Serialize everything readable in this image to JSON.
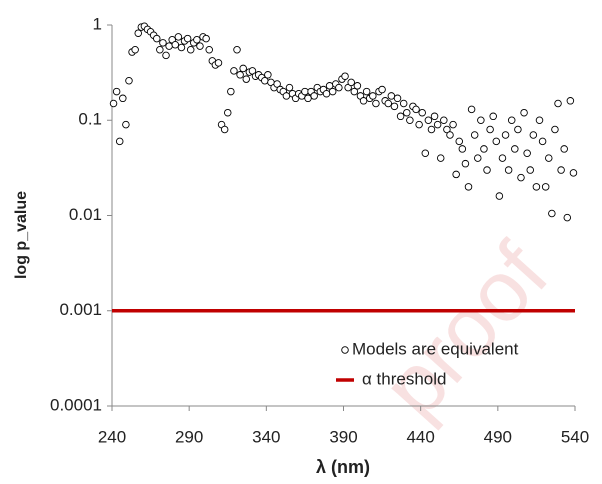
{
  "chart_data": {
    "type": "scatter",
    "xlabel": "λ (nm)",
    "ylabel": "log p_value",
    "watermark": "proof",
    "xlim": [
      240,
      540
    ],
    "xticks": [
      240,
      290,
      340,
      390,
      440,
      490,
      540
    ],
    "ylim": [
      0.0001,
      1
    ],
    "yticks": [
      1,
      0.1,
      0.01,
      0.001,
      0.0001
    ],
    "log_y": true,
    "legend": "lower right",
    "series": [
      {
        "name": "Models are equivalent",
        "type": "scatter",
        "color": "#000000",
        "x": [
          241,
          243,
          245,
          247,
          249,
          251,
          253,
          255,
          257,
          259,
          261,
          263,
          265,
          267,
          269,
          271,
          273,
          275,
          277,
          279,
          281,
          283,
          285,
          287,
          289,
          291,
          293,
          295,
          297,
          299,
          301,
          303,
          305,
          307,
          309,
          311,
          313,
          315,
          317,
          319,
          321,
          323,
          325,
          327,
          329,
          331,
          333,
          335,
          337,
          339,
          341,
          343,
          345,
          347,
          349,
          351,
          353,
          355,
          357,
          359,
          361,
          363,
          365,
          367,
          369,
          371,
          373,
          375,
          377,
          379,
          381,
          383,
          385,
          387,
          389,
          391,
          393,
          395,
          397,
          399,
          401,
          403,
          405,
          407,
          409,
          411,
          413,
          415,
          417,
          419,
          421,
          423,
          425,
          427,
          429,
          431,
          433,
          435,
          437,
          439,
          441,
          443,
          445,
          447,
          449,
          451,
          453,
          455,
          457,
          459,
          461,
          463,
          465,
          467,
          469,
          471,
          473,
          475,
          477,
          479,
          481,
          483,
          485,
          487,
          489,
          491,
          493,
          495,
          497,
          499,
          501,
          503,
          505,
          507,
          509,
          511,
          513,
          515,
          517,
          519,
          521,
          523,
          525,
          527,
          529,
          531,
          533,
          535,
          537,
          539
        ],
        "values": [
          0.15,
          0.2,
          0.06,
          0.17,
          0.09,
          0.26,
          0.52,
          0.55,
          0.82,
          0.95,
          0.97,
          0.9,
          0.85,
          0.78,
          0.72,
          0.55,
          0.65,
          0.48,
          0.6,
          0.7,
          0.62,
          0.75,
          0.58,
          0.68,
          0.72,
          0.55,
          0.65,
          0.7,
          0.6,
          0.75,
          0.72,
          0.55,
          0.42,
          0.38,
          0.4,
          0.09,
          0.08,
          0.12,
          0.2,
          0.33,
          0.55,
          0.3,
          0.35,
          0.27,
          0.32,
          0.33,
          0.29,
          0.3,
          0.28,
          0.26,
          0.3,
          0.25,
          0.22,
          0.24,
          0.21,
          0.2,
          0.18,
          0.22,
          0.19,
          0.17,
          0.19,
          0.18,
          0.2,
          0.17,
          0.2,
          0.18,
          0.22,
          0.2,
          0.21,
          0.19,
          0.23,
          0.2,
          0.24,
          0.22,
          0.27,
          0.29,
          0.22,
          0.25,
          0.2,
          0.23,
          0.18,
          0.16,
          0.2,
          0.17,
          0.18,
          0.15,
          0.2,
          0.21,
          0.16,
          0.15,
          0.18,
          0.14,
          0.17,
          0.11,
          0.15,
          0.12,
          0.1,
          0.14,
          0.13,
          0.09,
          0.12,
          0.045,
          0.1,
          0.08,
          0.11,
          0.09,
          0.04,
          0.1,
          0.08,
          0.07,
          0.09,
          0.027,
          0.06,
          0.05,
          0.035,
          0.02,
          0.13,
          0.07,
          0.04,
          0.1,
          0.05,
          0.03,
          0.08,
          0.11,
          0.06,
          0.016,
          0.04,
          0.07,
          0.03,
          0.1,
          0.05,
          0.08,
          0.025,
          0.12,
          0.045,
          0.03,
          0.07,
          0.02,
          0.1,
          0.06,
          0.02,
          0.04,
          0.0105,
          0.08,
          0.15,
          0.03,
          0.05,
          0.0095,
          0.16,
          0.028
        ]
      },
      {
        "name": "α threshold",
        "type": "line",
        "color": "#c00000",
        "x": [
          240,
          540
        ],
        "values": [
          0.001,
          0.001
        ]
      }
    ]
  }
}
